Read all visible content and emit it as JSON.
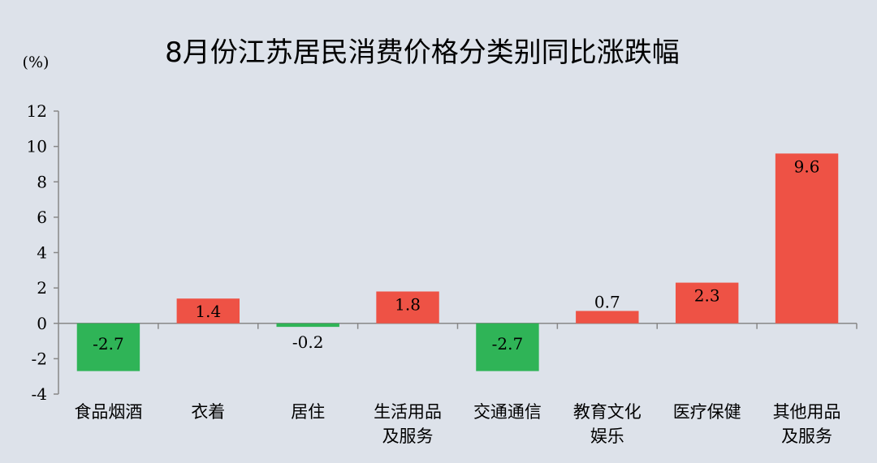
{
  "chart_data": {
    "type": "bar",
    "title": "8月份江苏居民消费价格分类别同比涨跌幅",
    "unit": "(%)",
    "categories": [
      [
        "食品烟酒"
      ],
      [
        "衣着"
      ],
      [
        "居住"
      ],
      [
        "生活用品",
        "及服务"
      ],
      [
        "交通通信"
      ],
      [
        "教育文化",
        "娱乐"
      ],
      [
        "医疗保健"
      ],
      [
        "其他用品",
        "及服务"
      ]
    ],
    "values": [
      -2.7,
      1.4,
      -0.2,
      1.8,
      -2.7,
      0.7,
      2.3,
      9.6
    ],
    "value_labels": [
      "-2.7",
      "1.4",
      "-0.2",
      "1.8",
      "-2.7",
      "0.7",
      "2.3",
      "9.6"
    ],
    "ylim": [
      -4,
      12
    ],
    "yticks": [
      -4,
      -2,
      0,
      2,
      4,
      6,
      8,
      10,
      12
    ],
    "grid": false,
    "colors": {
      "positive": "#ee5245",
      "negative": "#2fb457",
      "axis": "#888888"
    }
  }
}
